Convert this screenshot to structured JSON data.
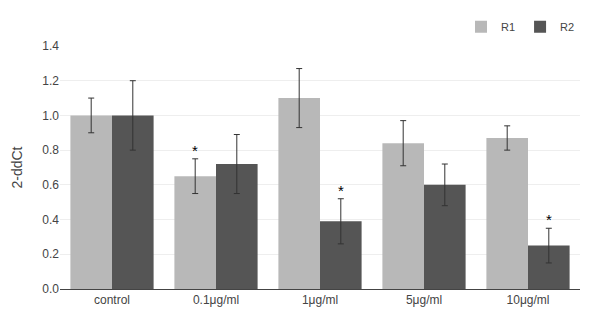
{
  "chart_data": {
    "type": "bar",
    "categories": [
      "control",
      "0.1μg/ml",
      "1μg/ml",
      "5μg/ml",
      "10μg/ml"
    ],
    "series": [
      {
        "name": "R1",
        "color": "#b8b8b8",
        "values": [
          1.0,
          0.65,
          1.1,
          0.84,
          0.87
        ],
        "errors": [
          0.1,
          0.1,
          0.17,
          0.13,
          0.07
        ]
      },
      {
        "name": "R2",
        "color": "#555555",
        "values": [
          1.0,
          0.72,
          0.39,
          0.6,
          0.25
        ],
        "errors": [
          0.2,
          0.17,
          0.13,
          0.12,
          0.1
        ]
      }
    ],
    "ylabel": "2-ddCt",
    "ylim": [
      0,
      1.4
    ],
    "yticks": [
      {
        "value": 0,
        "label": "0.0"
      },
      0.2,
      0.4,
      0.6,
      0.8,
      {
        "value": 1.0,
        "label": "1.0"
      },
      1.2,
      1.4
    ],
    "grid": true,
    "legend": "upper right",
    "annotations": [
      {
        "text": "*",
        "series": "R1",
        "category": "0.1μg/ml"
      },
      {
        "text": "*",
        "series": "R2",
        "category": "1μg/ml"
      },
      {
        "text": "*",
        "series": "R2",
        "category": "10μg/ml"
      }
    ]
  }
}
